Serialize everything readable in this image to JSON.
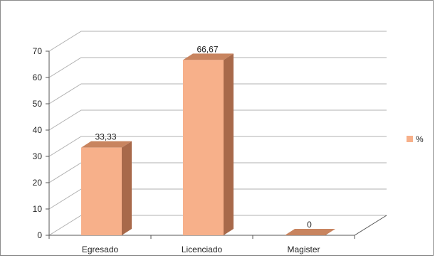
{
  "chart_data": {
    "type": "bar",
    "title": "",
    "xlabel": "",
    "ylabel": "",
    "categories": [
      "Egresado",
      "Licenciado",
      "Magister"
    ],
    "series": [
      {
        "name": "%",
        "values": [
          33.33,
          66.67,
          0
        ],
        "labels": [
          "33,33",
          "66,67",
          "0"
        ],
        "color": "#f7b08a"
      }
    ],
    "ylim": [
      0,
      70
    ],
    "yticks": [
      "0",
      "10",
      "20",
      "30",
      "40",
      "50",
      "60",
      "70"
    ],
    "style": "3d-column",
    "grid": true,
    "legend": "right",
    "colors": {
      "bar_front": "#f7b08a",
      "bar_side": "#a8694a",
      "bar_top": "#c8845f",
      "grid": "#b0b0b0"
    }
  }
}
